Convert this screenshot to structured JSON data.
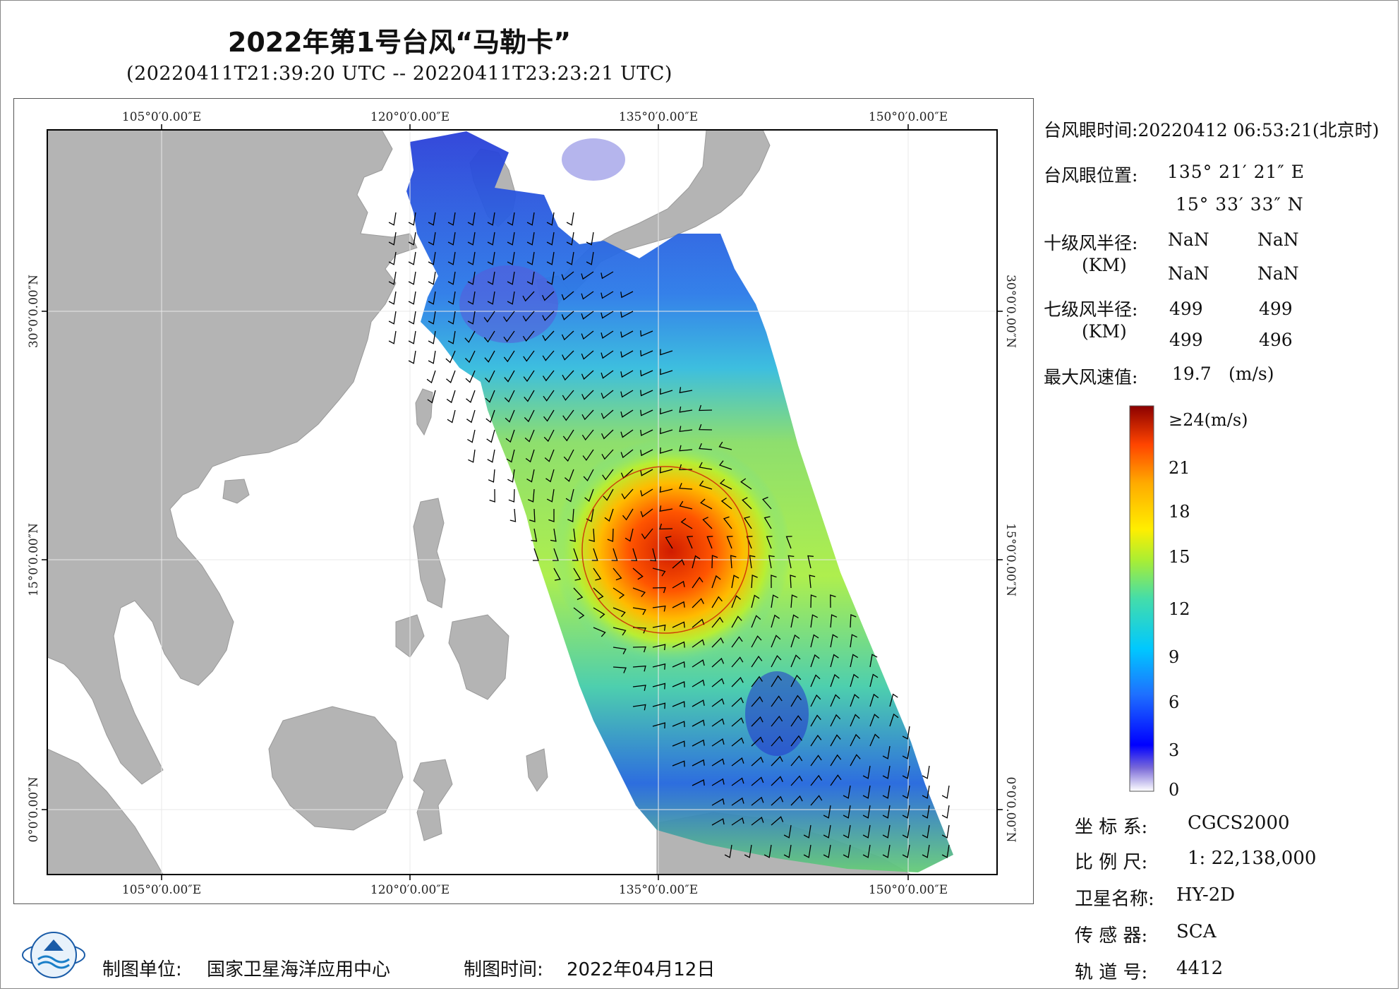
{
  "title": "2022年第1号台风“马勒卡”",
  "subtitle": "(20220411T21:39:20 UTC -- 20220411T23:23:21 UTC)",
  "map": {
    "lon_ticks": [
      "105°0′0.00″E",
      "120°0′0.00″E",
      "135°0′0.00″E",
      "150°0′0.00″E"
    ],
    "lat_ticks": [
      "30°0′0.00″N",
      "15°0′0.00″N",
      "0°0′0.00″N"
    ],
    "land_color": "#b4b4b4",
    "sea_color": "#ffffff",
    "eye_marker_color": "#cc0000"
  },
  "info": {
    "eye_time_label": "台风眼时间:",
    "eye_time_value": "20220412 06:53:21(北京时)",
    "eye_pos_label": "台风眼位置:",
    "eye_lon": "135° 21′ 21″ E",
    "eye_lat": "15° 33′ 33″ N",
    "r10_label": "十级风半径:",
    "r10_unit": "(KM)",
    "r10_values": [
      "NaN",
      "NaN",
      "NaN",
      "NaN"
    ],
    "r7_label": "七级风半径:",
    "r7_unit": "(KM)",
    "r7_values": [
      "499",
      "499",
      "499",
      "496"
    ],
    "max_wind_label": "最大风速值:",
    "max_wind_value": "19.7",
    "max_wind_unit": "(m/s)"
  },
  "colorbar": {
    "labels": [
      "≥24(m/s)",
      "21",
      "18",
      "15",
      "12",
      "9",
      "6",
      "3",
      "0"
    ],
    "colors": [
      "#ffffff",
      "#6a5acd",
      "#0000ff",
      "#1e6fff",
      "#00c8ff",
      "#44ddaa",
      "#aaee33",
      "#ffee00",
      "#ffaa00",
      "#ff4400",
      "#8b0000"
    ]
  },
  "meta": {
    "crs_label": "坐 标 系:",
    "crs_value": "CGCS2000",
    "scale_label": "比 例 尺:",
    "scale_value": "1: 22,138,000",
    "sat_label": "卫星名称:",
    "sat_value": "HY-2D",
    "sensor_label": "传 感 器:",
    "sensor_value": "SCA",
    "orbit_label": "轨 道 号:",
    "orbit_value": "4412"
  },
  "footer": {
    "producer_label": "制图单位:",
    "producer_value": "国家卫星海洋应用中心",
    "date_label": "制图时间:",
    "date_value": "2022年04月12日"
  }
}
